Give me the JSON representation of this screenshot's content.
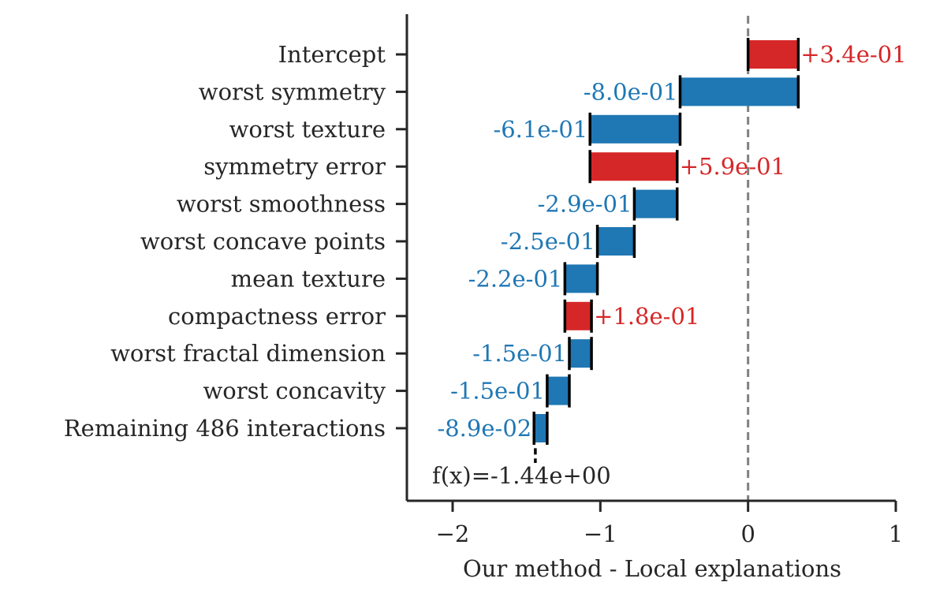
{
  "chart_data": {
    "type": "bar",
    "subtype": "waterfall-horizontal",
    "xlabel": "Our method - Local explanations",
    "xlim": [
      -2.3,
      1.0
    ],
    "xticks": [
      -2,
      -1,
      0,
      1
    ],
    "xtick_labels": [
      "−2",
      "−1",
      "0",
      "1"
    ],
    "grid": false,
    "categories": [
      "Intercept",
      "worst symmetry",
      "worst texture",
      "symmetry error",
      "worst smoothness",
      "worst concave points",
      "mean texture",
      "compactness error",
      "worst fractal dimension",
      "worst concavity",
      "Remaining 486 interactions"
    ],
    "values": [
      0.34,
      -0.8,
      -0.61,
      0.59,
      -0.29,
      -0.25,
      -0.22,
      0.18,
      -0.15,
      -0.15,
      -0.089
    ],
    "value_labels": [
      "+3.4e-01",
      "-8.0e-01",
      "-6.1e-01",
      "+5.9e-01",
      "-2.9e-01",
      "-2.5e-01",
      "-2.2e-01",
      "+1.8e-01",
      "-1.5e-01",
      "-1.5e-01",
      "-8.9e-02"
    ],
    "final_value": -1.44,
    "final_label": "f(x)=-1.44e+00",
    "colors": {
      "positive": "#d62728",
      "negative": "#1f77b4",
      "axis": "#262626",
      "zero_line": "#808080"
    }
  }
}
